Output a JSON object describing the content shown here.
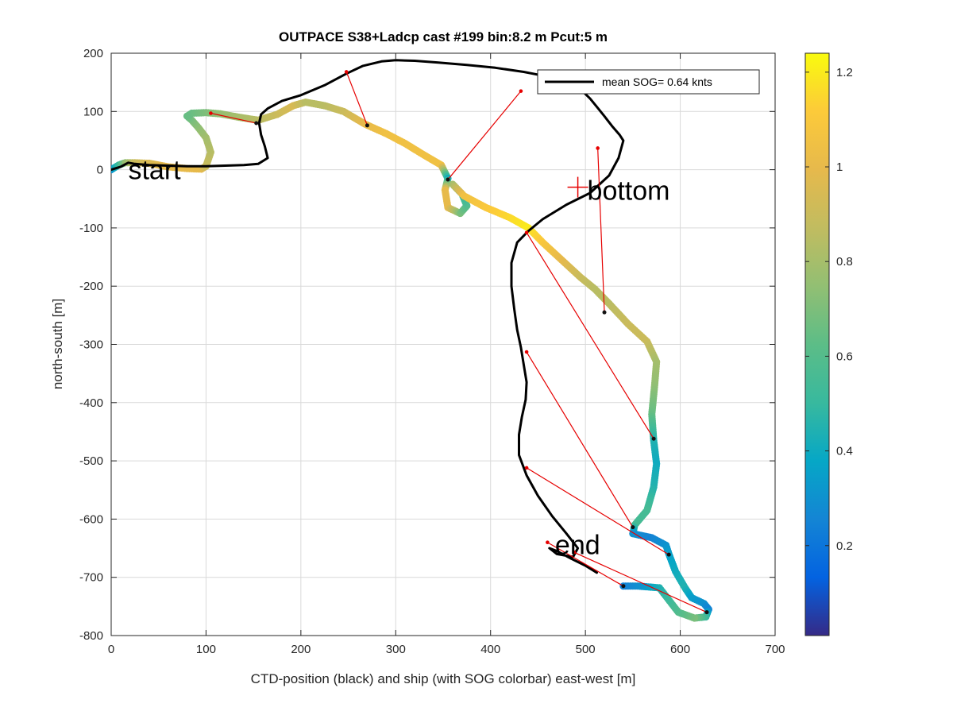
{
  "chart_data": {
    "type": "scatter",
    "title": "OUTPACE S38+Ladcp cast #199 bin:8.2 m  Pcut:5 m",
    "xlabel": "CTD-position (black) and ship (with SOG colorbar) east-west [m]",
    "ylabel": "north-south [m]",
    "xlim": [
      0,
      700
    ],
    "ylim": [
      -800,
      200
    ],
    "xticks": [
      0,
      100,
      200,
      300,
      400,
      500,
      600,
      700
    ],
    "yticks": [
      200,
      100,
      0,
      -100,
      -200,
      -300,
      -400,
      -500,
      -600,
      -700,
      -800
    ],
    "grid": true,
    "legend": {
      "entries": [
        "mean SOG=  0.64 knts"
      ],
      "placement": "top-right"
    },
    "colorbar": {
      "range": [
        0.01,
        1.24
      ],
      "ticks": [
        0.2,
        0.4,
        0.6,
        0.8,
        1,
        1.2
      ],
      "colormap": "parula"
    },
    "annotations": [
      {
        "text": "start",
        "x": 18,
        "y": 0
      },
      {
        "text": "bottom",
        "x": 502,
        "y": -35
      },
      {
        "text": "end",
        "x": 468,
        "y": -644
      }
    ],
    "bottom_marker": {
      "x": 492,
      "y": -30
    },
    "ctd_track": [
      [
        0,
        0
      ],
      [
        10,
        5
      ],
      [
        18,
        12
      ],
      [
        25,
        10
      ],
      [
        40,
        8
      ],
      [
        60,
        7
      ],
      [
        80,
        6
      ],
      [
        100,
        6
      ],
      [
        120,
        7
      ],
      [
        140,
        8
      ],
      [
        155,
        10
      ],
      [
        165,
        20
      ],
      [
        162,
        40
      ],
      [
        158,
        60
      ],
      [
        156,
        80
      ],
      [
        158,
        95
      ],
      [
        165,
        105
      ],
      [
        180,
        118
      ],
      [
        200,
        128
      ],
      [
        225,
        145
      ],
      [
        248,
        165
      ],
      [
        265,
        178
      ],
      [
        285,
        186
      ],
      [
        300,
        188
      ],
      [
        320,
        187
      ],
      [
        345,
        184
      ],
      [
        375,
        180
      ],
      [
        405,
        175
      ],
      [
        435,
        168
      ],
      [
        460,
        160
      ],
      [
        480,
        150
      ],
      [
        495,
        138
      ],
      [
        505,
        122
      ],
      [
        512,
        108
      ],
      [
        520,
        92
      ],
      [
        528,
        75
      ],
      [
        536,
        60
      ],
      [
        540,
        50
      ],
      [
        535,
        20
      ],
      [
        525,
        -10
      ],
      [
        505,
        -40
      ],
      [
        480,
        -60
      ],
      [
        455,
        -85
      ],
      [
        440,
        -105
      ],
      [
        428,
        -125
      ],
      [
        422,
        -160
      ],
      [
        422,
        -200
      ],
      [
        425,
        -240
      ],
      [
        428,
        -275
      ],
      [
        432,
        -305
      ],
      [
        435,
        -335
      ],
      [
        438,
        -365
      ],
      [
        437,
        -395
      ],
      [
        433,
        -425
      ],
      [
        430,
        -455
      ],
      [
        430,
        -490
      ],
      [
        438,
        -525
      ],
      [
        450,
        -560
      ],
      [
        465,
        -595
      ],
      [
        480,
        -625
      ],
      [
        492,
        -650
      ],
      [
        487,
        -665
      ],
      [
        470,
        -660
      ],
      [
        462,
        -650
      ],
      [
        470,
        -655
      ],
      [
        485,
        -668
      ],
      [
        500,
        -680
      ],
      [
        512,
        -692
      ]
    ],
    "ship_track": [
      [
        0,
        0,
        0.3
      ],
      [
        8,
        8,
        0.5
      ],
      [
        15,
        12,
        0.75
      ],
      [
        25,
        12,
        0.9
      ],
      [
        40,
        11,
        0.95
      ],
      [
        60,
        5,
        1.0
      ],
      [
        80,
        2,
        1.0
      ],
      [
        95,
        1,
        1.0
      ],
      [
        100,
        6,
        0.9
      ],
      [
        105,
        30,
        0.85
      ],
      [
        100,
        55,
        0.8
      ],
      [
        92,
        72,
        0.75
      ],
      [
        85,
        85,
        0.7
      ],
      [
        80,
        92,
        0.65
      ],
      [
        85,
        97,
        0.65
      ],
      [
        100,
        98,
        0.7
      ],
      [
        115,
        96,
        0.75
      ],
      [
        135,
        90,
        0.8
      ],
      [
        155,
        85,
        0.85
      ],
      [
        175,
        95,
        0.9
      ],
      [
        192,
        110,
        0.95
      ],
      [
        205,
        116,
        0.85
      ],
      [
        225,
        110,
        0.85
      ],
      [
        245,
        100,
        0.9
      ],
      [
        268,
        78,
        1.0
      ],
      [
        290,
        62,
        1.05
      ],
      [
        310,
        45,
        1.05
      ],
      [
        330,
        25,
        1.05
      ],
      [
        348,
        8,
        1.05
      ],
      [
        355,
        -15,
        0.4
      ],
      [
        352,
        -35,
        1.0
      ],
      [
        355,
        -65,
        1.0
      ],
      [
        368,
        -75,
        0.7
      ],
      [
        375,
        -62,
        0.6
      ],
      [
        370,
        -42,
        0.5
      ],
      [
        360,
        -25,
        0.8
      ],
      [
        372,
        -45,
        1.05
      ],
      [
        395,
        -65,
        1.1
      ],
      [
        420,
        -82,
        1.15
      ],
      [
        440,
        -100,
        1.2
      ],
      [
        455,
        -125,
        1.1
      ],
      [
        475,
        -155,
        1.0
      ],
      [
        495,
        -185,
        0.9
      ],
      [
        510,
        -205,
        0.85
      ],
      [
        525,
        -230,
        0.85
      ],
      [
        545,
        -265,
        0.9
      ],
      [
        565,
        -295,
        0.9
      ],
      [
        575,
        -330,
        0.8
      ],
      [
        573,
        -370,
        0.75
      ],
      [
        570,
        -420,
        0.65
      ],
      [
        572,
        -465,
        0.45
      ],
      [
        575,
        -505,
        0.4
      ],
      [
        572,
        -545,
        0.45
      ],
      [
        565,
        -585,
        0.55
      ],
      [
        552,
        -610,
        0.55
      ],
      [
        550,
        -625,
        0.3
      ],
      [
        570,
        -632,
        0.25
      ],
      [
        585,
        -645,
        0.3
      ],
      [
        588,
        -660,
        0.35
      ],
      [
        595,
        -690,
        0.4
      ],
      [
        605,
        -718,
        0.45
      ],
      [
        612,
        -735,
        0.35
      ],
      [
        625,
        -745,
        0.3
      ],
      [
        630,
        -755,
        0.25
      ],
      [
        627,
        -768,
        0.5
      ],
      [
        615,
        -770,
        0.7
      ],
      [
        598,
        -760,
        0.6
      ],
      [
        578,
        -718,
        0.45
      ],
      [
        555,
        -715,
        0.3
      ],
      [
        540,
        -715,
        0.25
      ]
    ],
    "link_segments": [
      [
        [
          105,
          97
        ],
        [
          153,
          80
        ]
      ],
      [
        [
          248,
          168
        ],
        [
          270,
          76
        ]
      ],
      [
        [
          432,
          135
        ],
        [
          355,
          -17
        ]
      ],
      [
        [
          513,
          37
        ],
        [
          520,
          -245
        ]
      ],
      [
        [
          438,
          -108
        ],
        [
          572,
          -462
        ]
      ],
      [
        [
          438,
          -313
        ],
        [
          550,
          -614
        ]
      ],
      [
        [
          438,
          -512
        ],
        [
          588,
          -661
        ]
      ],
      [
        [
          460,
          -640
        ],
        [
          540,
          -715
        ]
      ],
      [
        [
          488,
          -657
        ],
        [
          628,
          -760
        ]
      ]
    ]
  },
  "colors": {
    "ctd_track": "#000000",
    "links": "#e60000",
    "grid": "#d9d9d9",
    "axes": "#262626"
  }
}
